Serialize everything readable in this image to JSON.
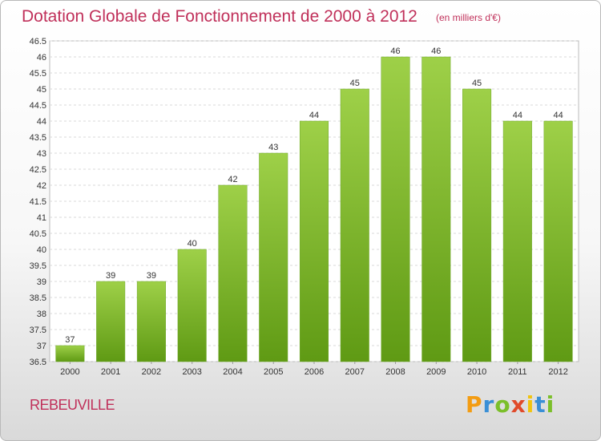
{
  "chart_data": {
    "type": "bar",
    "title": "Dotation Globale de Fonctionnement de 2000 à 2012",
    "unit_note": "(en milliers d'€)",
    "categories": [
      "2000",
      "2001",
      "2002",
      "2003",
      "2004",
      "2005",
      "2006",
      "2007",
      "2008",
      "2009",
      "2010",
      "2011",
      "2012"
    ],
    "values": [
      37,
      39,
      39,
      40,
      42,
      43,
      44,
      45,
      46,
      46,
      45,
      44,
      44
    ],
    "ylim": [
      36.5,
      46.5
    ],
    "yticks": [
      36.5,
      37,
      37.5,
      38,
      38.5,
      39,
      39.5,
      40,
      40.5,
      41,
      41.5,
      42,
      42.5,
      43,
      43.5,
      44,
      44.5,
      45,
      45.5,
      46,
      46.5
    ],
    "grid": true,
    "bar_color": "#8cc43c"
  },
  "commune": "REBEUVILLE",
  "logo": {
    "letters": [
      "P",
      "r",
      "o",
      "x",
      "i",
      "t",
      "i"
    ],
    "colors": [
      "#f39c12",
      "#3a8fd6",
      "#7bbf2a",
      "#e04a2a",
      "#f1c40f",
      "#3a8fd6",
      "#7bbf2a"
    ]
  }
}
